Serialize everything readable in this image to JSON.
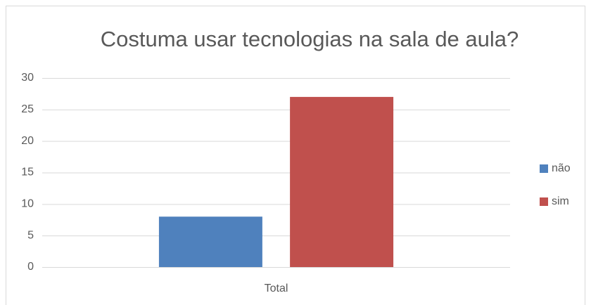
{
  "chart_data": {
    "type": "bar",
    "title": "Costuma usar tecnologias na sala de aula?",
    "categories": [
      "Total"
    ],
    "series": [
      {
        "name": "não",
        "color": "#4f81bd",
        "values": [
          8
        ]
      },
      {
        "name": "sim",
        "color": "#c0504d",
        "values": [
          27
        ]
      }
    ],
    "ylim": [
      0,
      30
    ],
    "yticks": [
      0,
      5,
      10,
      15,
      20,
      25,
      30
    ],
    "grid": true,
    "legend": "right"
  }
}
